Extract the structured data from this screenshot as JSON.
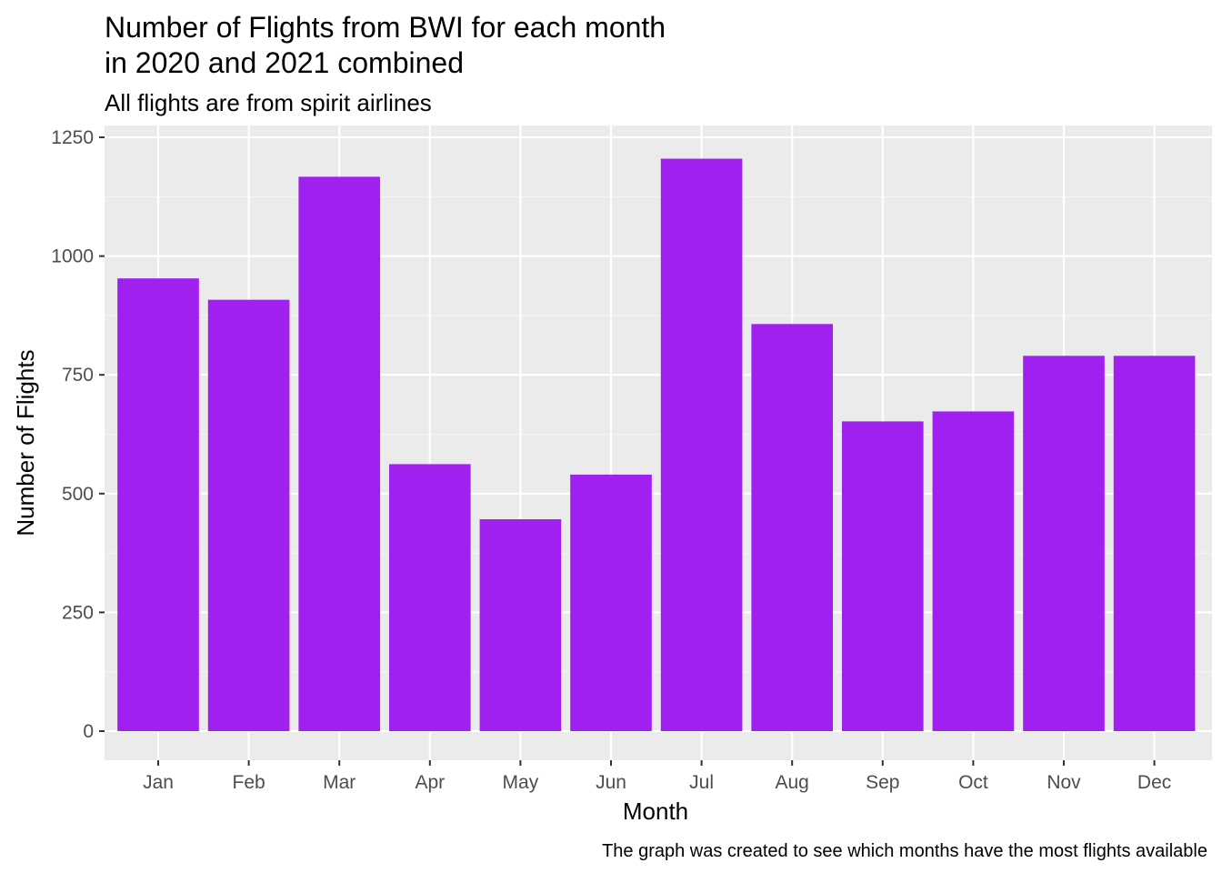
{
  "chart_data": {
    "type": "bar",
    "title_lines": [
      "Number of Flights from BWI for each month",
      "in 2020 and 2021 combined"
    ],
    "subtitle": "All flights are from spirit airlines",
    "xlabel": "Month",
    "ylabel": "Number of Flights",
    "caption": "The graph was created to see which months have the most flights available",
    "categories": [
      "Jan",
      "Feb",
      "Mar",
      "Apr",
      "May",
      "Jun",
      "Jul",
      "Aug",
      "Sep",
      "Oct",
      "Nov",
      "Dec"
    ],
    "values": [
      953,
      908,
      1167,
      562,
      446,
      540,
      1205,
      857,
      652,
      673,
      790,
      790
    ],
    "ylim": [
      0,
      1250
    ],
    "yticks": [
      0,
      250,
      500,
      750,
      1000,
      1250
    ],
    "ytick_labels": [
      "0",
      "250",
      "500",
      "750",
      "1000",
      "1250"
    ],
    "grid": true,
    "legend": "none",
    "colors": {
      "bar": "#a020f0",
      "panel_background": "#ebebeb",
      "grid_major": "#ffffff",
      "grid_minor": "#f5f5f5",
      "tick_text": "#4d4d4d"
    }
  }
}
